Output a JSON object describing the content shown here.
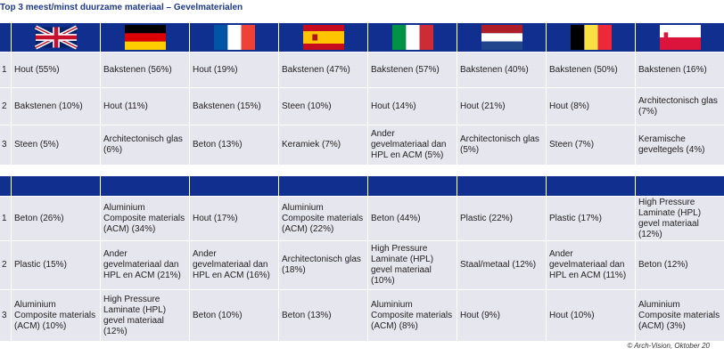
{
  "title": "Top 3 meest/minst duurzame materiaal – Gevelmaterialen",
  "table_top": {
    "rows": [
      {
        "rank": "1",
        "cells": [
          "Hout (55%)",
          "Bakstenen (56%)",
          "Hout (19%)",
          "Bakstenen (47%)",
          "Bakstenen (57%)",
          "Bakstenen (40%)",
          "Bakstenen (50%)",
          "Bakstenen (16%)"
        ]
      },
      {
        "rank": "2",
        "cells": [
          "Bakstenen (10%)",
          "Hout (11%)",
          "Bakstenen (15%)",
          "Steen (10%)",
          "Hout (14%)",
          "Hout (21%)",
          "Hout (8%)",
          "Architectonisch glas (7%)"
        ]
      },
      {
        "rank": "3",
        "cells": [
          "Steen (5%)",
          "Architectonisch glas (6%)",
          "Beton (13%)",
          "Keramiek (7%)",
          "Ander gevelmateriaal dan HPL en ACM (5%)",
          "Architectonisch glas (5%)",
          "Steen (7%)",
          "Keramische geveltegels (4%)"
        ]
      }
    ]
  },
  "table_bottom": {
    "rows": [
      {
        "rank": "1",
        "cells": [
          "Beton (26%)",
          "Aluminium Composite materials (ACM) (34%)",
          "Hout (17%)",
          "Aluminium Composite materials (ACM) (22%)",
          "Beton (44%)",
          "Plastic (22%)",
          "Plastic (17%)",
          "High Pressure Laminate (HPL) gevel materiaal (12%)"
        ]
      },
      {
        "rank": "2",
        "cells": [
          "Plastic (15%)",
          "Ander gevelmateriaal dan HPL en ACM (21%)",
          "Ander gevelmateriaal dan HPL en ACM (16%)",
          "Architectonisch glas (18%)",
          "High Pressure Laminate (HPL) gevel materiaal (10%)",
          "Staal/metaal (12%)",
          "Ander gevelmateriaal dan HPL en ACM (11%)",
          "Beton (12%)"
        ]
      },
      {
        "rank": "3",
        "cells": [
          "Aluminium Composite materials (ACM) (10%)",
          "High Pressure Laminate (HPL) gevel materiaal (12%)",
          "Beton (10%)",
          "Beton (13%)",
          "Aluminium Composite materials (ACM) (8%)",
          "Hout (9%)",
          "Hout (10%)",
          "Aluminium Composite materials (ACM) (3%)"
        ]
      }
    ]
  },
  "footer": "© Arch-Vision, Oktober 20"
}
